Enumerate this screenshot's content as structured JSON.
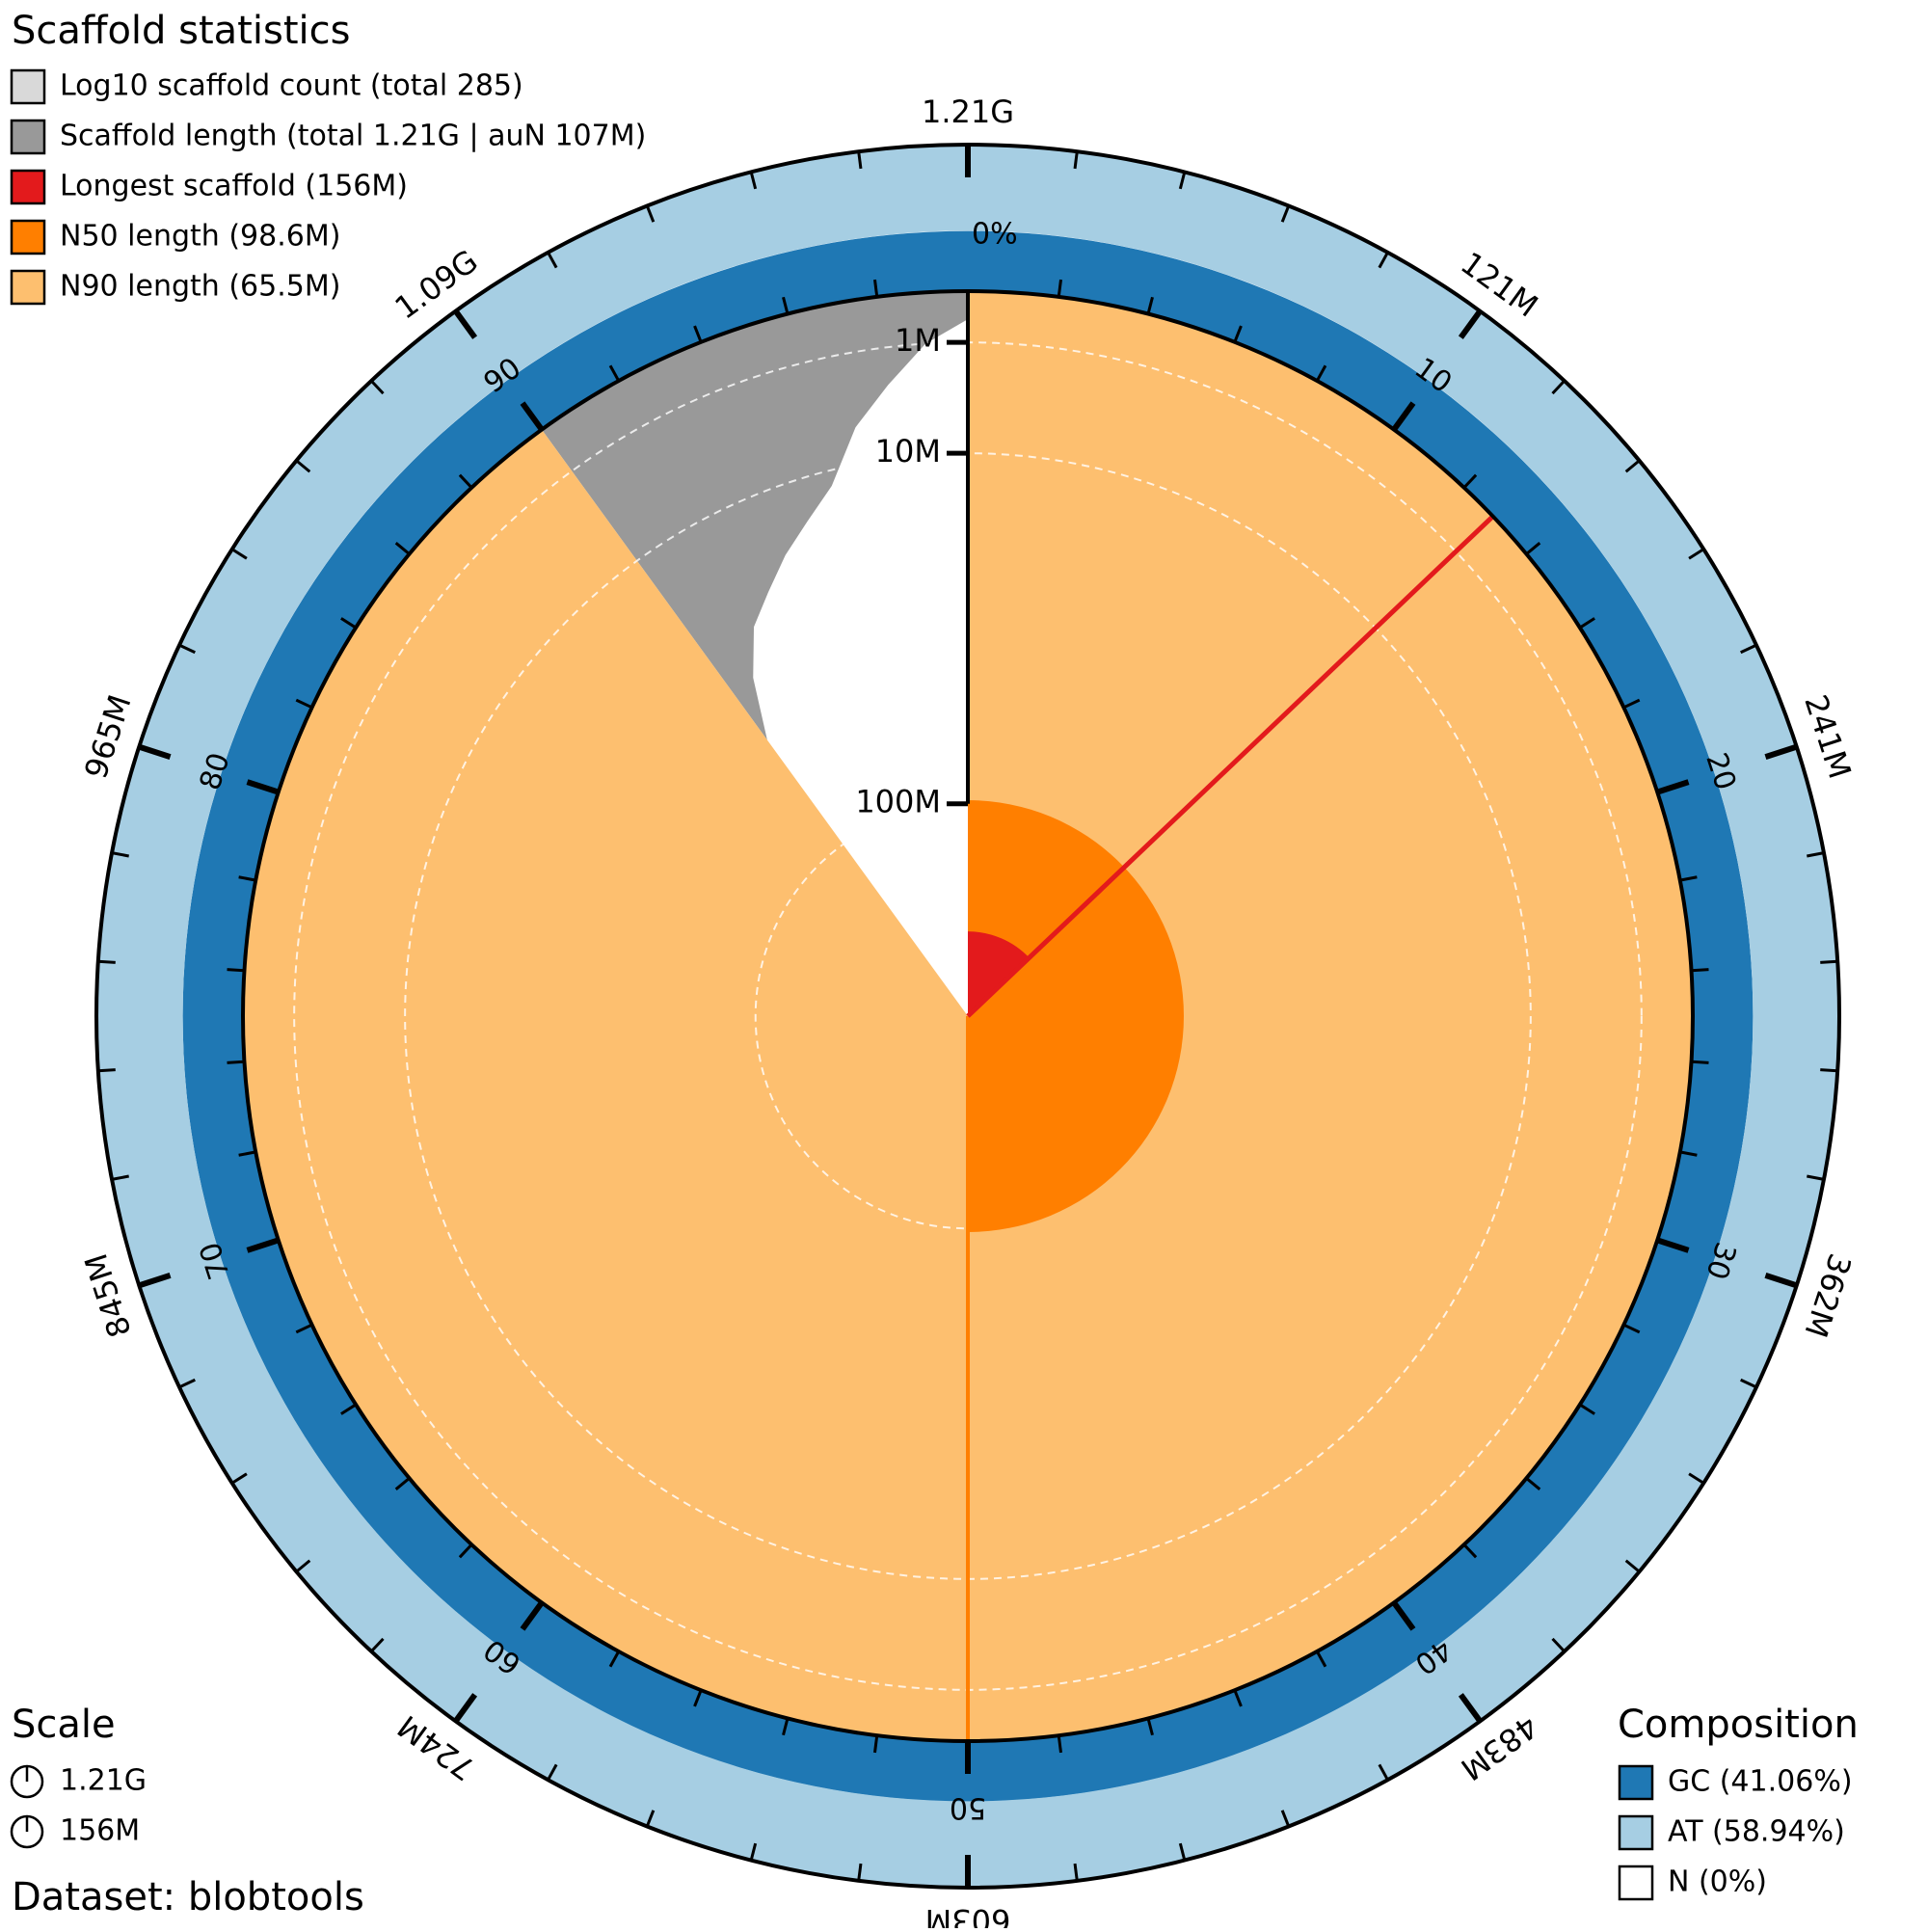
{
  "chart_data": {
    "type": "snail",
    "title": "Scaffold statistics",
    "legend": [
      {
        "label": "Log10 scaffold count (total 285)",
        "color": "#d9d9d9",
        "value": 285
      },
      {
        "label": "Scaffold length (total 1.21G | auN 107M)",
        "color": "#999999",
        "value": 1210000000
      },
      {
        "label": "Longest scaffold (156M)",
        "color": "#e31a1c",
        "value": 156000000
      },
      {
        "label": "N50 length (98.6M)",
        "color": "#ff7f00",
        "value": 98600000,
        "level": 50
      },
      {
        "label": "N90 length (65.5M)",
        "color": "#fdbf6f",
        "value": 65500000,
        "level": 90
      }
    ],
    "xlim": [
      0,
      100
    ],
    "xticks": [
      {
        "value": 0,
        "label": "1.21G"
      },
      {
        "value": 10,
        "label": "121M"
      },
      {
        "value": 20,
        "label": "241M"
      },
      {
        "value": 30,
        "label": "362M"
      },
      {
        "value": 40,
        "label": "483M"
      },
      {
        "value": 50,
        "label": "603M"
      },
      {
        "value": 60,
        "label": "724M"
      },
      {
        "value": 70,
        "label": "845M"
      },
      {
        "value": 80,
        "label": "965M"
      },
      {
        "value": 90,
        "label": "1.09G"
      }
    ],
    "percent_ticks": [
      10,
      20,
      30,
      40,
      50,
      60,
      70,
      80,
      90
    ],
    "rlim": [
      200000000,
      0
    ],
    "rticks": [
      {
        "value": 1000000,
        "label": "1M"
      },
      {
        "value": 10000000,
        "label": "10M"
      },
      {
        "value": 100000000,
        "label": "100M"
      }
    ],
    "length_profile": {
      "x": [
        90,
        91,
        92,
        93,
        94,
        95,
        96,
        97,
        98,
        99,
        100
      ],
      "values": [
        56000000,
        40000000,
        30000000,
        25000000,
        20000000,
        16000000,
        12000000,
        6000000,
        3000000,
        1000000,
        300000
      ]
    },
    "composition": {
      "title": "Composition",
      "axis_label": "0%",
      "series": [
        {
          "name": "GC (41.06%)",
          "color": "#1f78b4",
          "value": 41.06
        },
        {
          "name": "AT (58.94%)",
          "color": "#a6cee3",
          "value": 58.94
        },
        {
          "name": "N (0%)",
          "color": "#ffffff",
          "value": 0
        }
      ]
    },
    "scale": {
      "title": "Scale",
      "items": [
        "1.21G",
        "156M"
      ]
    },
    "dataset": "Dataset: blobtools"
  }
}
